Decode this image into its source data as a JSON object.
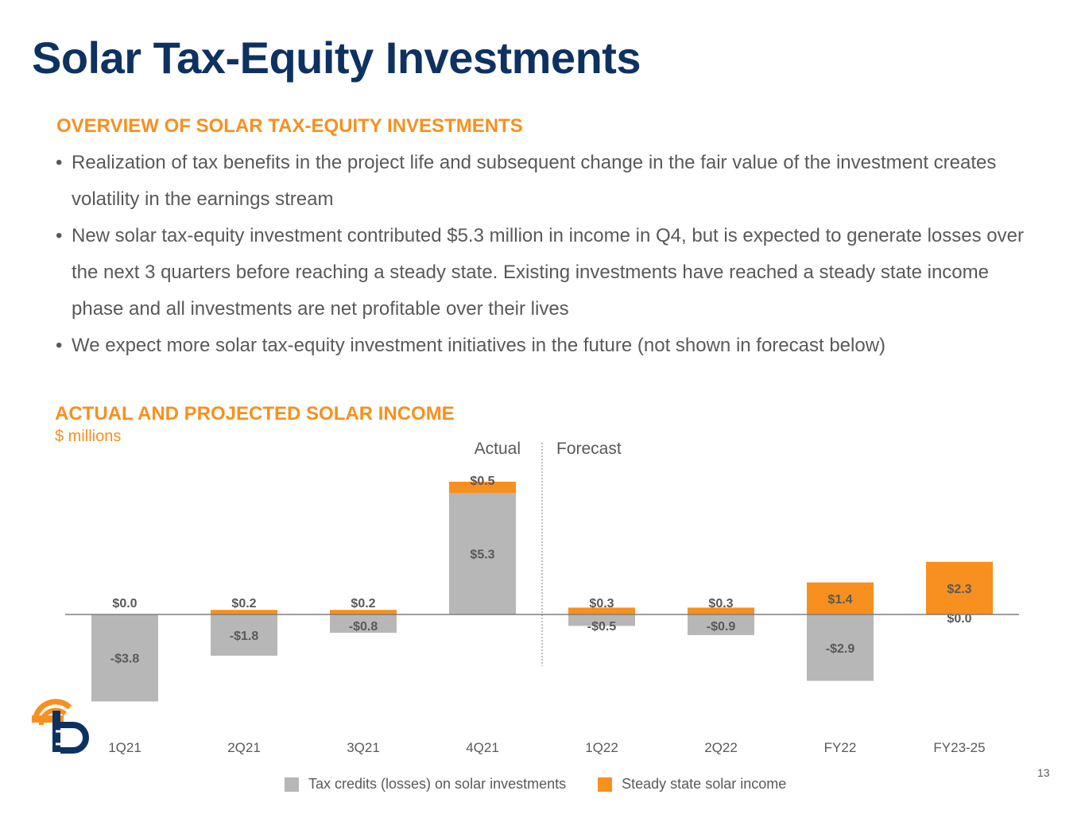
{
  "slide": {
    "title": "Solar Tax-Equity Investments",
    "overview_heading": "OVERVIEW OF SOLAR TAX-EQUITY INVESTMENTS",
    "bullet_char": "•",
    "bullets": [
      "Realization of tax benefits in the project life and subsequent change in the fair value of the investment creates volatility in the earnings stream",
      "New solar tax-equity investment contributed $5.3 million in income in Q4, but is expected to generate losses over the next 3 quarters before reaching a steady state. Existing investments have reached a steady state income phase and all investments are net profitable over their lives",
      "We expect more solar tax-equity investment initiatives in the future (not shown in forecast below)"
    ],
    "page_number": "13"
  },
  "chart_data": {
    "type": "bar",
    "stacked": true,
    "title": "ACTUAL AND PROJECTED SOLAR INCOME",
    "subtitle": "$ millions",
    "categories": [
      "1Q21",
      "2Q21",
      "3Q21",
      "4Q21",
      "1Q22",
      "2Q22",
      "FY22",
      "FY23-25"
    ],
    "series": [
      {
        "name": "Tax credits (losses) on solar investments",
        "color": "#b7b7b7",
        "values": [
          -3.8,
          -1.8,
          -0.8,
          5.3,
          -0.5,
          -0.9,
          -2.9,
          0.0
        ],
        "labels": [
          "-$3.8",
          "-$1.8",
          "-$0.8",
          "$5.3",
          "-$0.5",
          "-$0.9",
          "-$2.9",
          "$0.0"
        ]
      },
      {
        "name": "Steady state solar income",
        "color": "#f7901e",
        "values": [
          0.0,
          0.2,
          0.2,
          0.5,
          0.3,
          0.3,
          1.4,
          2.3
        ],
        "labels": [
          "$0.0",
          "$0.2",
          "$0.2",
          "$0.5",
          "$0.3",
          "$0.3",
          "$1.4",
          "$2.3"
        ]
      }
    ],
    "periods": {
      "actual_label": "Actual",
      "forecast_label": "Forecast",
      "forecast_start_index": 4
    },
    "ylim": [
      -4.2,
      6.2
    ],
    "legend_position": "bottom",
    "grid": false
  },
  "logo": {
    "name": "company-logo",
    "colors": [
      "#f7901e",
      "#0d3261"
    ]
  }
}
